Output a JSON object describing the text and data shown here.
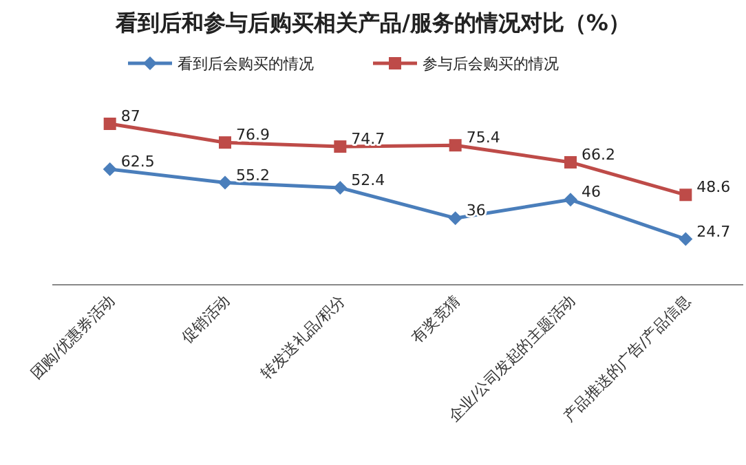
{
  "chart_data": {
    "type": "line",
    "title": "看到后和参与后购买相关产品/服务的情况对比（%）",
    "categories": [
      "团购/优惠券活动",
      "促销活动",
      "转发送礼品/积分",
      "有奖竞猜",
      "企业/公司发起的主题活动",
      "产品推送的广告/产品信息"
    ],
    "series": [
      {
        "name": "看到后会购买的情况",
        "color": "#4a7ebb",
        "marker": "diamond",
        "values": [
          62.5,
          55.2,
          52.4,
          36,
          46,
          24.7
        ]
      },
      {
        "name": "参与后会购买的情况",
        "color": "#be4b48",
        "marker": "square",
        "values": [
          87,
          76.9,
          74.7,
          75.4,
          66.2,
          48.6
        ]
      }
    ],
    "data_labels": true,
    "legend": "top",
    "line_style": "solid"
  }
}
